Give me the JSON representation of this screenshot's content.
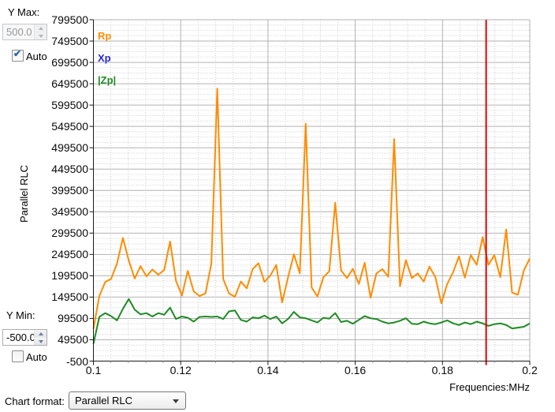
{
  "left_panel": {
    "y_max_label": "Y Max:",
    "y_max_value": "500.0",
    "y_max_auto_label": "Auto",
    "y_max_auto_checked": true,
    "y_min_label": "Y Min:",
    "y_min_value": "-500.0",
    "y_min_auto_label": "Auto",
    "y_min_auto_checked": false
  },
  "footer": {
    "chart_format_label": "Chart format:",
    "chart_format_value": "Parallel RLC"
  },
  "chart_data": {
    "type": "line",
    "title": "",
    "xlabel": "Frequencies:MHz",
    "ylabel": "Parallel RLC",
    "x_range": [
      0.1,
      0.2
    ],
    "y_range": [
      -500,
      799500
    ],
    "y_tick_step": 50000,
    "y_ticks": [
      "799500",
      "749500",
      "699500",
      "649500",
      "599500",
      "549500",
      "499500",
      "449500",
      "399500",
      "349500",
      "299500",
      "249500",
      "199500",
      "149500",
      "99500",
      "49500",
      "-500"
    ],
    "x_ticks": [
      "0.1",
      "0.12",
      "0.14",
      "0.16",
      "0.18",
      "0.2"
    ],
    "grid": {
      "major_color": "#B2B2B2",
      "minor_color": "#CCCCCC",
      "x_minor_step": 0.004,
      "y_minor_step": 12500
    },
    "cursor": {
      "x_mhz": 0.19,
      "color": "#E00000"
    },
    "legend": [
      {
        "label": "Rp",
        "color": "#FF8C00"
      },
      {
        "label": "Xp",
        "color": "#2929D6"
      },
      {
        "label": "|Zp|",
        "color": "#1F8B24"
      }
    ],
    "series": [
      {
        "name": "Rp",
        "color": "#FF8C00",
        "visible": true,
        "values": [
          75000,
          152000,
          185000,
          192000,
          228000,
          288000,
          235000,
          193000,
          222000,
          198000,
          214000,
          202000,
          213000,
          280000,
          188000,
          153000,
          211000,
          163000,
          152000,
          158000,
          228000,
          638000,
          192000,
          158000,
          150000,
          186000,
          170000,
          215000,
          229000,
          185000,
          200000,
          225000,
          137000,
          195000,
          250000,
          205000,
          556000,
          172000,
          151000,
          196000,
          210000,
          371000,
          212000,
          194000,
          216000,
          180000,
          230000,
          148000,
          205000,
          215000,
          197000,
          520000,
          175000,
          236000,
          194000,
          205000,
          186000,
          221000,
          196000,
          135000,
          180000,
          208000,
          245000,
          195000,
          248000,
          225000,
          290000,
          225000,
          248000,
          196000,
          308000,
          160000,
          155000,
          212000,
          240000
        ]
      },
      {
        "name": "Xp",
        "color": "#2929D6",
        "visible": false,
        "values": []
      },
      {
        "name": "|Zp|",
        "color": "#1F8B24",
        "visible": true,
        "values": [
          40000,
          103000,
          112000,
          105000,
          95000,
          122000,
          145000,
          120000,
          109000,
          112000,
          104000,
          112000,
          108000,
          125000,
          98000,
          104000,
          101000,
          92000,
          103000,
          104000,
          103000,
          104000,
          98000,
          116000,
          118000,
          96000,
          92000,
          102000,
          100000,
          106000,
          98000,
          104000,
          88000,
          98000,
          115000,
          102000,
          100000,
          95000,
          90000,
          101000,
          99000,
          112000,
          91000,
          94000,
          87000,
          96000,
          105000,
          100000,
          98000,
          92000,
          88000,
          90000,
          94000,
          100000,
          87000,
          86000,
          92000,
          88000,
          86000,
          90000,
          95000,
          88000,
          84000,
          90000,
          86000,
          92000,
          88000,
          82000,
          86000,
          88000,
          84000,
          76000,
          78000,
          80000,
          88000
        ]
      }
    ]
  }
}
